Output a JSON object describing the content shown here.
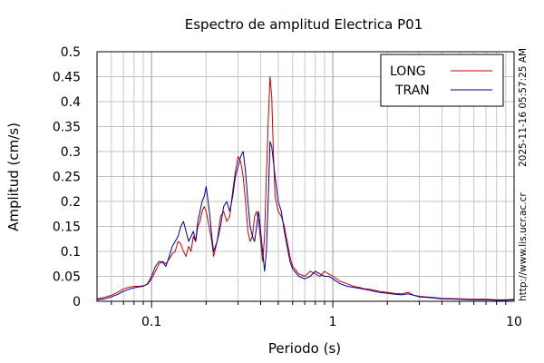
{
  "side_text": {
    "timestamp": "2025-11-16 05:57:25 AM",
    "url": "http://www.lis.ucr.ac.cr"
  },
  "chart_data": {
    "type": "line",
    "title": "Espectro de amplitud Electrica P01",
    "xlabel": "Periodo (s)",
    "ylabel": "Amplitud (cm/s)",
    "x_scale": "log",
    "xlim": [
      0.05,
      10
    ],
    "ylim": [
      0,
      0.5
    ],
    "x_ticks": [
      0.1,
      1,
      10
    ],
    "x_tick_labels": [
      "0.1",
      "1",
      "10"
    ],
    "y_ticks": [
      0,
      0.05,
      0.1,
      0.15,
      0.2,
      0.25,
      0.3,
      0.35,
      0.4,
      0.45,
      0.5
    ],
    "y_tick_labels": [
      "0",
      "0.05",
      "0.1",
      "0.15",
      "0.2",
      "0.25",
      "0.3",
      "0.35",
      "0.4",
      "0.45",
      "0.5"
    ],
    "grid": true,
    "legend_position": "top-right",
    "series": [
      {
        "name": "LONG",
        "color": "#cc0000",
        "x": [
          0.05,
          0.055,
          0.06,
          0.065,
          0.07,
          0.075,
          0.08,
          0.085,
          0.09,
          0.095,
          0.1,
          0.105,
          0.11,
          0.115,
          0.12,
          0.125,
          0.13,
          0.135,
          0.14,
          0.145,
          0.15,
          0.155,
          0.16,
          0.165,
          0.17,
          0.175,
          0.18,
          0.185,
          0.19,
          0.195,
          0.2,
          0.205,
          0.21,
          0.215,
          0.22,
          0.23,
          0.24,
          0.25,
          0.26,
          0.27,
          0.28,
          0.29,
          0.3,
          0.31,
          0.32,
          0.33,
          0.34,
          0.35,
          0.36,
          0.37,
          0.38,
          0.39,
          0.4,
          0.41,
          0.42,
          0.43,
          0.44,
          0.45,
          0.46,
          0.47,
          0.48,
          0.5,
          0.52,
          0.54,
          0.56,
          0.58,
          0.6,
          0.65,
          0.7,
          0.75,
          0.8,
          0.85,
          0.9,
          0.95,
          1.0,
          1.1,
          1.2,
          1.3,
          1.4,
          1.5,
          1.6,
          1.8,
          2.0,
          2.2,
          2.4,
          2.6,
          2.8,
          3.0,
          3.5,
          4.0,
          5.0,
          6.0,
          7.0,
          8.0,
          9.0,
          10.0
        ],
        "y": [
          0.005,
          0.008,
          0.012,
          0.018,
          0.025,
          0.028,
          0.03,
          0.03,
          0.031,
          0.034,
          0.045,
          0.06,
          0.075,
          0.08,
          0.075,
          0.085,
          0.095,
          0.1,
          0.12,
          0.115,
          0.1,
          0.09,
          0.11,
          0.1,
          0.13,
          0.12,
          0.15,
          0.16,
          0.18,
          0.19,
          0.18,
          0.16,
          0.14,
          0.12,
          0.09,
          0.12,
          0.17,
          0.18,
          0.16,
          0.17,
          0.22,
          0.26,
          0.29,
          0.28,
          0.25,
          0.2,
          0.14,
          0.12,
          0.13,
          0.17,
          0.18,
          0.16,
          0.12,
          0.08,
          0.13,
          0.25,
          0.36,
          0.45,
          0.41,
          0.3,
          0.21,
          0.18,
          0.17,
          0.15,
          0.12,
          0.09,
          0.07,
          0.055,
          0.05,
          0.06,
          0.055,
          0.05,
          0.06,
          0.055,
          0.05,
          0.04,
          0.035,
          0.03,
          0.028,
          0.025,
          0.024,
          0.02,
          0.018,
          0.016,
          0.015,
          0.018,
          0.012,
          0.01,
          0.008,
          0.006,
          0.005,
          0.004,
          0.004,
          0.003,
          0.003,
          0.004
        ]
      },
      {
        "name": "TRAN",
        "color": "#000099",
        "x": [
          0.05,
          0.055,
          0.06,
          0.065,
          0.07,
          0.075,
          0.08,
          0.085,
          0.09,
          0.095,
          0.1,
          0.105,
          0.11,
          0.115,
          0.12,
          0.125,
          0.13,
          0.135,
          0.14,
          0.145,
          0.15,
          0.155,
          0.16,
          0.165,
          0.17,
          0.175,
          0.18,
          0.185,
          0.19,
          0.195,
          0.2,
          0.205,
          0.21,
          0.215,
          0.22,
          0.23,
          0.24,
          0.25,
          0.26,
          0.27,
          0.28,
          0.29,
          0.3,
          0.31,
          0.32,
          0.33,
          0.34,
          0.35,
          0.36,
          0.37,
          0.38,
          0.39,
          0.4,
          0.41,
          0.42,
          0.43,
          0.44,
          0.45,
          0.46,
          0.47,
          0.48,
          0.5,
          0.52,
          0.54,
          0.56,
          0.58,
          0.6,
          0.65,
          0.7,
          0.75,
          0.8,
          0.85,
          0.9,
          0.95,
          1.0,
          1.1,
          1.2,
          1.3,
          1.4,
          1.5,
          1.6,
          1.8,
          2.0,
          2.2,
          2.4,
          2.6,
          2.8,
          3.0,
          3.5,
          4.0,
          5.0,
          6.0,
          7.0,
          8.0,
          9.0,
          10.0
        ],
        "y": [
          0.003,
          0.005,
          0.009,
          0.014,
          0.02,
          0.024,
          0.027,
          0.029,
          0.03,
          0.035,
          0.05,
          0.07,
          0.08,
          0.078,
          0.07,
          0.09,
          0.11,
          0.12,
          0.13,
          0.15,
          0.16,
          0.14,
          0.12,
          0.13,
          0.14,
          0.12,
          0.16,
          0.18,
          0.2,
          0.21,
          0.23,
          0.2,
          0.17,
          0.13,
          0.1,
          0.12,
          0.15,
          0.19,
          0.2,
          0.18,
          0.21,
          0.25,
          0.27,
          0.29,
          0.3,
          0.26,
          0.2,
          0.15,
          0.13,
          0.12,
          0.15,
          0.18,
          0.14,
          0.1,
          0.06,
          0.1,
          0.2,
          0.32,
          0.31,
          0.28,
          0.25,
          0.2,
          0.18,
          0.14,
          0.11,
          0.08,
          0.065,
          0.05,
          0.045,
          0.05,
          0.06,
          0.055,
          0.05,
          0.05,
          0.045,
          0.035,
          0.03,
          0.028,
          0.026,
          0.024,
          0.022,
          0.018,
          0.016,
          0.014,
          0.013,
          0.015,
          0.012,
          0.009,
          0.007,
          0.005,
          0.004,
          0.003,
          0.003,
          0.002,
          0.002,
          0.003
        ]
      }
    ]
  }
}
